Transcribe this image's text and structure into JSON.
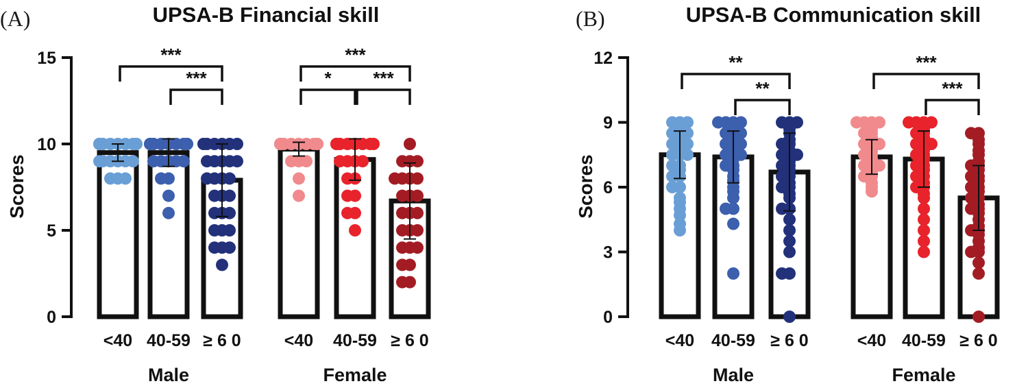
{
  "chart_data": [
    {
      "type": "bar",
      "panel_label": "(A)",
      "title": "UPSA-B Financial skill",
      "ylabel": "Scores",
      "ylim": [
        0,
        15
      ],
      "yticks": [
        0,
        5,
        10,
        15
      ],
      "groups": [
        {
          "label": "Male",
          "categories": [
            {
              "label": "<40",
              "mean": 9.5,
              "sd": 0.5,
              "color": "#6a9fd6",
              "points": [
                10,
                10,
                10,
                10,
                10,
                10,
                10,
                10,
                10,
                10,
                9,
                9,
                9,
                9,
                9,
                9,
                8,
                8,
                8
              ]
            },
            {
              "label": "40-59",
              "mean": 9.5,
              "sd": 0.8,
              "color": "#3c5fae",
              "points": [
                10,
                10,
                10,
                10,
                10,
                10,
                10,
                10,
                10,
                9,
                9,
                9,
                9,
                9,
                8,
                8,
                7,
                6
              ]
            },
            {
              "label": "≥ 6 0",
              "mean": 7.9,
              "sd": 2.1,
              "color": "#22317a",
              "points": [
                10,
                10,
                10,
                10,
                10,
                10,
                9,
                9,
                9,
                9,
                9,
                8,
                8,
                8,
                8,
                7,
                7,
                7,
                6,
                6,
                6,
                5,
                5,
                5,
                4,
                4,
                4,
                3
              ]
            }
          ]
        },
        {
          "label": "Female",
          "categories": [
            {
              "label": "<40",
              "mean": 9.7,
              "sd": 0.4,
              "color": "#f18a8d",
              "points": [
                10,
                10,
                10,
                10,
                10,
                10,
                10,
                10,
                10,
                10,
                9,
                9,
                9,
                8,
                7
              ]
            },
            {
              "label": "40-59",
              "mean": 9.1,
              "sd": 1.2,
              "color": "#e8232b",
              "points": [
                10,
                10,
                10,
                10,
                10,
                10,
                10,
                10,
                9,
                9,
                9,
                9,
                8,
                8,
                7,
                7,
                6,
                6,
                5
              ]
            },
            {
              "label": "≥ 6 0",
              "mean": 6.7,
              "sd": 2.2,
              "color": "#a31c24",
              "points": [
                10,
                9,
                9,
                9,
                8,
                8,
                8,
                8,
                7,
                7,
                7,
                6,
                6,
                6,
                5,
                5,
                5,
                4,
                4,
                4,
                3,
                3,
                2,
                2
              ]
            }
          ]
        }
      ],
      "significance": [
        {
          "from": [
            0,
            0
          ],
          "to": [
            0,
            2
          ],
          "label": "***",
          "level": 15
        },
        {
          "from": [
            0,
            1
          ],
          "to": [
            0,
            2
          ],
          "label": "***",
          "level": 13
        },
        {
          "from": [
            1,
            0
          ],
          "to": [
            1,
            2
          ],
          "label": "***",
          "level": 15
        },
        {
          "from": [
            1,
            0
          ],
          "to": [
            1,
            1
          ],
          "label": "*",
          "level": 13
        },
        {
          "from": [
            1,
            1
          ],
          "to": [
            1,
            2
          ],
          "label": "***",
          "level": 13
        }
      ]
    },
    {
      "type": "bar",
      "panel_label": "(B)",
      "title": "UPSA-B Communication skill",
      "ylabel": "Scores",
      "ylim": [
        0,
        12
      ],
      "yticks": [
        0,
        3,
        6,
        9,
        12
      ],
      "groups": [
        {
          "label": "Male",
          "categories": [
            {
              "label": "<40",
              "mean": 7.5,
              "sd": 1.1,
              "color": "#6a9fd6",
              "points": [
                9,
                9,
                9,
                8.8,
                8.5,
                8.5,
                8.5,
                8.3,
                8.2,
                8,
                8,
                8,
                7.8,
                7.5,
                7.5,
                7.5,
                7,
                7,
                6.8,
                6.5,
                6.5,
                6,
                6,
                5.5,
                5.3,
                5,
                4.7,
                4.3,
                4
              ]
            },
            {
              "label": "40-59",
              "mean": 7.4,
              "sd": 1.2,
              "color": "#3c5fae",
              "points": [
                9,
                9,
                9,
                9,
                8.8,
                8.5,
                8.5,
                8.5,
                8.2,
                8,
                8,
                8,
                7.8,
                7.5,
                7.5,
                7.5,
                7.3,
                7,
                7,
                6.8,
                6.5,
                6.3,
                6,
                5.8,
                5.5,
                5,
                5,
                4.3,
                2
              ]
            },
            {
              "label": "≥ 6 0",
              "mean": 6.7,
              "sd": 1.8,
              "color": "#22317a",
              "points": [
                9,
                9,
                9,
                8.7,
                8.5,
                8.2,
                8,
                8,
                7.7,
                7.5,
                7.5,
                7.5,
                7.2,
                7,
                7,
                6.8,
                6.5,
                6.5,
                6.2,
                6,
                6,
                5.7,
                5.5,
                5,
                5,
                4.5,
                4,
                3.5,
                3,
                2,
                2,
                0
              ]
            }
          ]
        },
        {
          "label": "Female",
          "categories": [
            {
              "label": "<40",
              "mean": 7.4,
              "sd": 0.8,
              "color": "#f18a8d",
              "points": [
                9,
                9,
                9,
                9,
                8.8,
                8.7,
                8.5,
                8.5,
                8.3,
                8.2,
                8,
                8,
                8,
                7.8,
                7.7,
                7.5,
                7.5,
                7.3,
                7,
                7,
                7,
                6.8,
                6.7,
                6.5,
                6.5,
                6.2,
                6,
                5.8
              ]
            },
            {
              "label": "40-59",
              "mean": 7.3,
              "sd": 1.3,
              "color": "#e8232b",
              "points": [
                9,
                9,
                9,
                9,
                8.8,
                8.7,
                8.5,
                8.5,
                8.3,
                8,
                8,
                8,
                7.8,
                7.7,
                7.5,
                7.5,
                7.3,
                7,
                7,
                6.8,
                6.5,
                6.5,
                6.2,
                6,
                6,
                5.7,
                5.5,
                5,
                4.5,
                4,
                3.5,
                3
              ]
            },
            {
              "label": "≥ 6 0",
              "mean": 5.5,
              "sd": 1.5,
              "color": "#a31c24",
              "points": [
                8.5,
                8.5,
                8.2,
                8,
                7.7,
                7.5,
                7.2,
                7,
                7,
                6.8,
                6.5,
                6.5,
                6.3,
                6,
                6,
                5.8,
                5.5,
                5.5,
                5.2,
                5,
                5,
                4.8,
                4.5,
                4.2,
                4,
                4,
                3.8,
                3.5,
                3.2,
                3,
                3,
                2.5,
                2,
                0
              ]
            }
          ]
        }
      ],
      "significance": [
        {
          "from": [
            0,
            0
          ],
          "to": [
            0,
            2
          ],
          "label": "**",
          "level": 11.3
        },
        {
          "from": [
            0,
            1
          ],
          "to": [
            0,
            2
          ],
          "label": "**",
          "level": 10.2
        },
        {
          "from": [
            1,
            0
          ],
          "to": [
            1,
            2
          ],
          "label": "***",
          "level": 11.3
        },
        {
          "from": [
            1,
            1
          ],
          "to": [
            1,
            2
          ],
          "label": "***",
          "level": 10.2
        }
      ]
    }
  ]
}
